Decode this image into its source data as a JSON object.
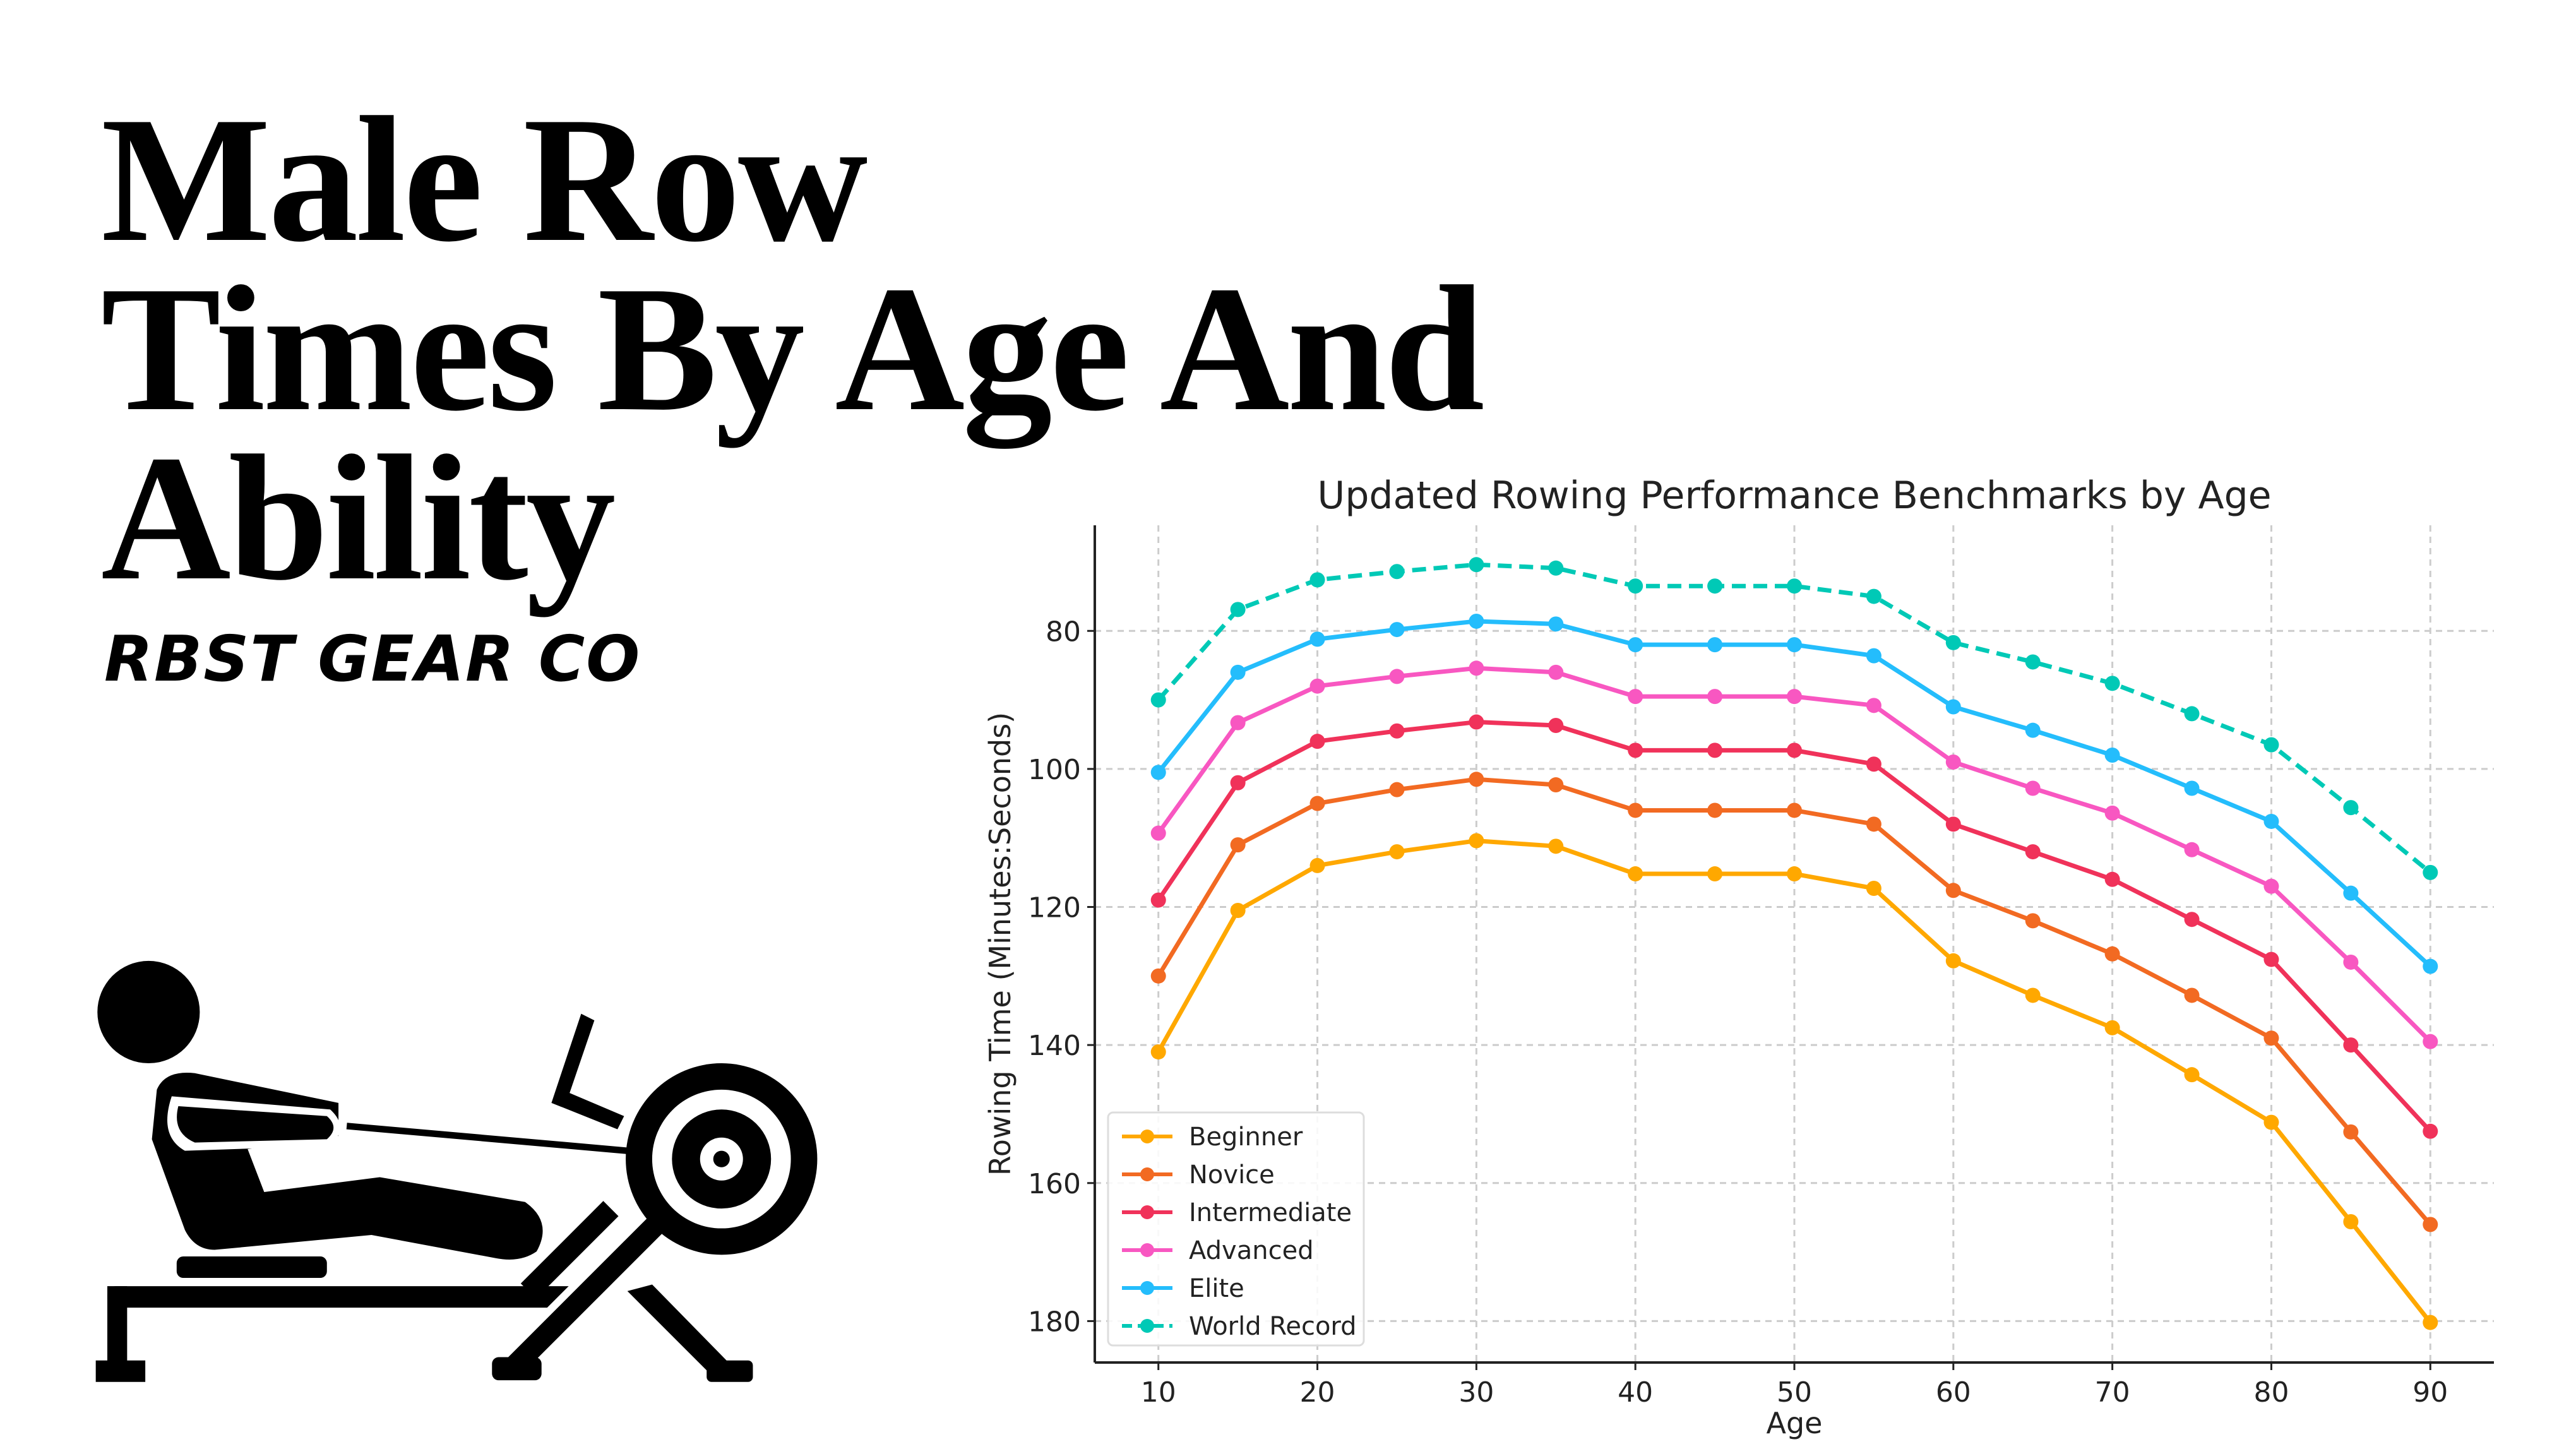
{
  "header": {
    "title_lines": [
      "Male Row",
      "Times By Age And",
      "Ability"
    ],
    "brand": "RBST GEAR CO"
  },
  "icon": {
    "name": "rowing-machine-icon"
  },
  "chart_data": {
    "type": "line",
    "title": "Updated Rowing Performance Benchmarks by Age",
    "xlabel": "Age",
    "ylabel": "Rowing Time (Minutes:Seconds)",
    "xlim": [
      6,
      94
    ],
    "ylim": [
      186,
      64.7
    ],
    "y_inverted": true,
    "grid": true,
    "legend_position": "lower-left",
    "xticks": [
      10,
      20,
      30,
      40,
      50,
      60,
      70,
      80,
      90
    ],
    "yticks": [
      80,
      100,
      120,
      140,
      160,
      180
    ],
    "x": [
      10,
      15,
      20,
      25,
      30,
      35,
      40,
      45,
      50,
      55,
      60,
      65,
      70,
      75,
      80,
      85,
      90
    ],
    "series": [
      {
        "name": "Beginner",
        "color": "#FFA800",
        "dash": false,
        "values": [
          141,
          120.5,
          114,
          112,
          110.4,
          111.2,
          115.2,
          115.2,
          115.2,
          117.3,
          127.8,
          132.8,
          137.5,
          144.3,
          151.2,
          165.6,
          180.2
        ]
      },
      {
        "name": "Novice",
        "color": "#F26A22",
        "dash": false,
        "values": [
          130,
          111,
          105,
          103,
          101.5,
          102.3,
          106,
          106,
          106,
          108,
          117.6,
          122,
          126.8,
          132.8,
          139,
          152.6,
          166
        ]
      },
      {
        "name": "Intermediate",
        "color": "#F0325A",
        "dash": false,
        "values": [
          119,
          102,
          96,
          94.5,
          93.2,
          93.7,
          97.3,
          97.3,
          97.3,
          99.3,
          108,
          112,
          116,
          121.8,
          127.6,
          140,
          152.5
        ]
      },
      {
        "name": "Advanced",
        "color": "#F857C1",
        "dash": false,
        "values": [
          109.3,
          93.3,
          88,
          86.6,
          85.4,
          86,
          89.5,
          89.5,
          89.5,
          90.8,
          99,
          102.8,
          106.4,
          111.7,
          117,
          128,
          139.5
        ]
      },
      {
        "name": "Elite",
        "color": "#24BDFC",
        "dash": false,
        "values": [
          100.5,
          86,
          81.2,
          79.8,
          78.6,
          79,
          82,
          82,
          82,
          83.6,
          91,
          94.4,
          98,
          102.8,
          107.6,
          118,
          128.6
        ]
      },
      {
        "name": "World Record",
        "color": "#00C9B6",
        "dash": true,
        "values": [
          90,
          76.9,
          72.6,
          71.4,
          70.4,
          70.9,
          73.5,
          73.5,
          73.5,
          75,
          81.7,
          84.5,
          87.6,
          92,
          96.5,
          105.6,
          115
        ]
      }
    ]
  }
}
